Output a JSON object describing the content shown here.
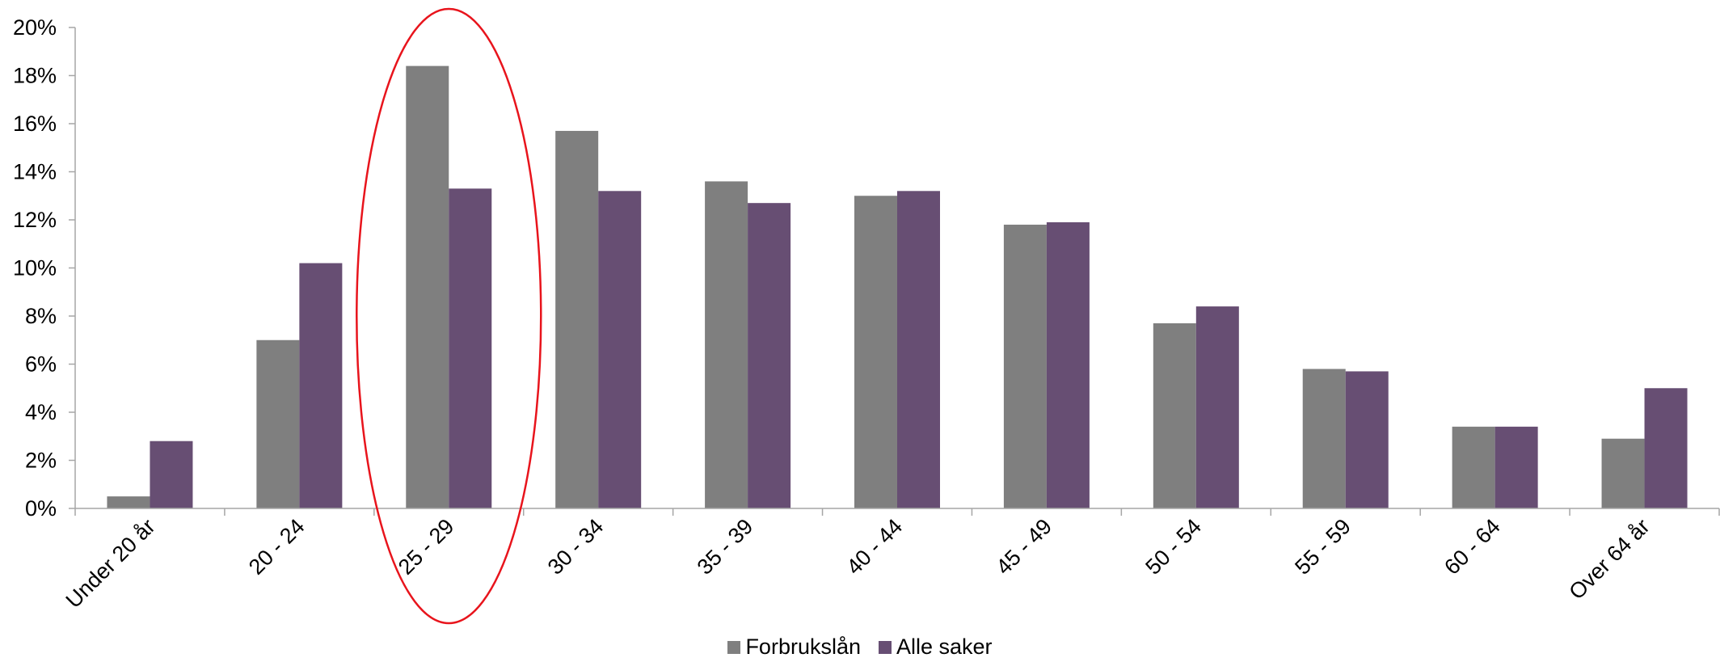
{
  "chart_data": {
    "type": "bar",
    "categories": [
      "Under 20 år",
      "20 - 24",
      "25 - 29",
      "30 - 34",
      "35 - 39",
      "40 - 44",
      "45 - 49",
      "50 - 54",
      "55 - 59",
      "60 - 64",
      "Over 64 år"
    ],
    "series": [
      {
        "name": "Forbrukslån",
        "color": "#7f7f7f",
        "values": [
          0.5,
          7.0,
          18.4,
          15.7,
          13.6,
          13.0,
          11.8,
          7.7,
          5.8,
          3.4,
          2.9
        ]
      },
      {
        "name": "Alle saker",
        "color": "#674e73",
        "values": [
          2.8,
          10.2,
          13.3,
          13.2,
          12.7,
          13.2,
          11.9,
          8.4,
          5.7,
          3.4,
          5.0
        ]
      }
    ],
    "yticks": [
      "0%",
      "2%",
      "4%",
      "6%",
      "8%",
      "10%",
      "12%",
      "14%",
      "16%",
      "18%",
      "20%"
    ],
    "ylim": [
      0,
      20
    ],
    "grid": false,
    "legend_position": "bottom",
    "highlight": {
      "category": "25 - 29",
      "shape": "ellipse",
      "color": "#e8141c"
    }
  }
}
